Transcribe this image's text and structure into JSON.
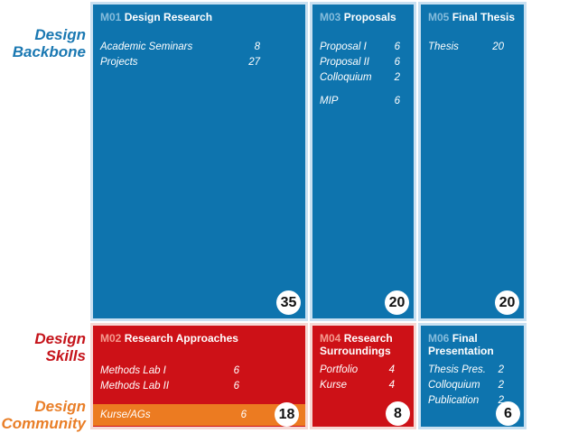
{
  "palette": {
    "blue": "#0e74ae",
    "blue_tint": "#c9e0f1",
    "blue_code": "#85bcdc",
    "red": "#cd1117",
    "red_tint": "#f6d8d4",
    "red_code": "#f49a8e",
    "orange": "#ec7b21",
    "label_blue": "#1a78b2",
    "label_red": "#c5131a",
    "label_orange": "#e97e27",
    "badge_text": "#111111"
  },
  "row_labels": {
    "backbone": {
      "line1": "Design",
      "line2": "Backbone"
    },
    "skills": {
      "line1": "Design",
      "line2": "Skills"
    },
    "community": {
      "line1": "Design",
      "line2": "Community"
    }
  },
  "modules": {
    "m01": {
      "code": "M01",
      "title": "Design Research",
      "total": "35",
      "items": [
        {
          "name": "Academic Seminars",
          "credits": "8"
        },
        {
          "name": "Projects",
          "credits": "27"
        }
      ]
    },
    "m03": {
      "code": "M03",
      "title": "Proposals",
      "total": "20",
      "items": [
        {
          "name": "Proposal I",
          "credits": "6"
        },
        {
          "name": "Proposal II",
          "credits": "6"
        },
        {
          "name": "Colloquium",
          "credits": "2"
        },
        {
          "name": "MIP",
          "credits": "6"
        }
      ]
    },
    "m05": {
      "code": "M05",
      "title": "Final Thesis",
      "total": "20",
      "items": [
        {
          "name": "Thesis",
          "credits": "20"
        }
      ]
    },
    "m02": {
      "code": "M02",
      "title": "Research Approaches",
      "total": "18",
      "items": [
        {
          "name": "Methods Lab I",
          "credits": "6"
        },
        {
          "name": "Methods Lab II",
          "credits": "6"
        }
      ],
      "community_item": {
        "name": "Kurse/AGs",
        "credits": "6"
      }
    },
    "m04": {
      "code": "M04",
      "title": "Research Surroundings",
      "total": "8",
      "items": [
        {
          "name": "Portfolio",
          "credits": "4"
        },
        {
          "name": "Kurse",
          "credits": "4"
        }
      ]
    },
    "m06": {
      "code": "M06",
      "title": "Final Presentation",
      "total": "6",
      "items": [
        {
          "name": "Thesis Pres.",
          "credits": "2"
        },
        {
          "name": "Colloquium",
          "credits": "2"
        },
        {
          "name": "Publication",
          "credits": "2"
        }
      ]
    }
  }
}
